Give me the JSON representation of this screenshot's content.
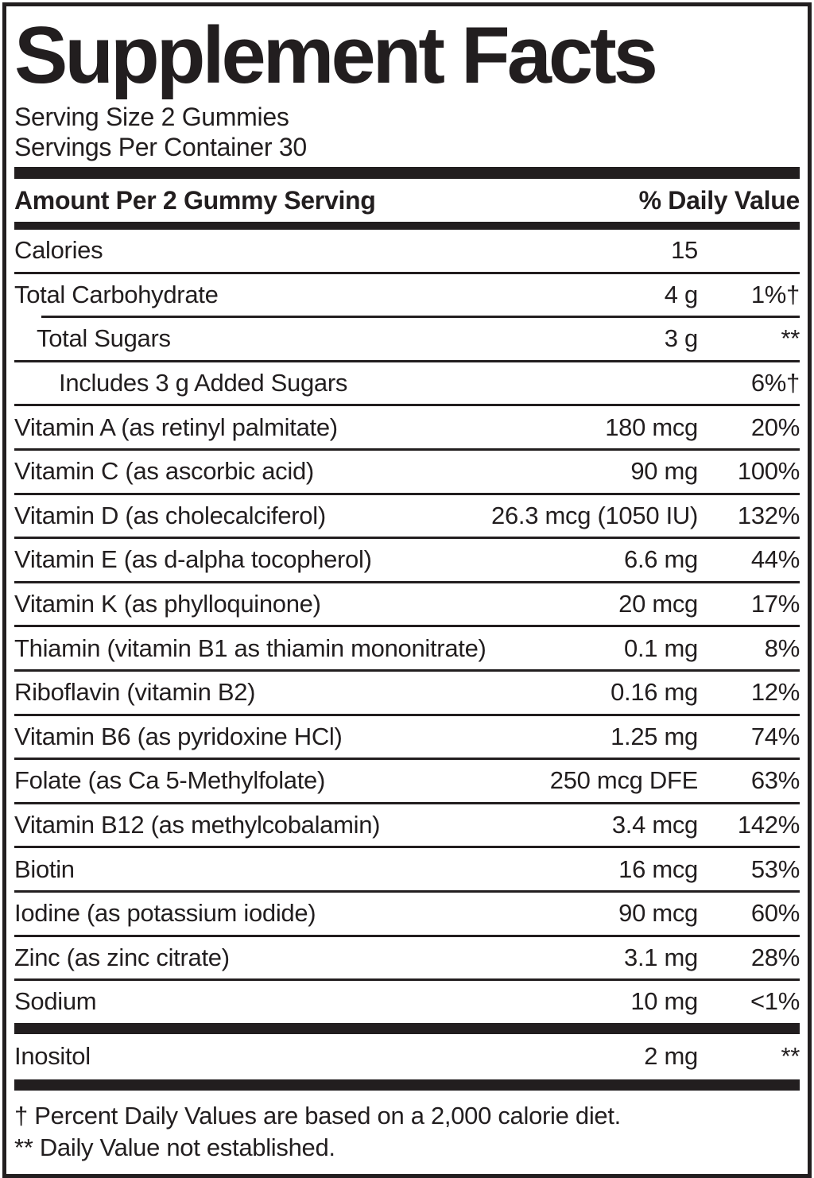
{
  "label": {
    "title": "Supplement Facts",
    "serving_size": "Serving Size 2 Gummies",
    "servings_per_container": "Servings Per Container 30",
    "columns": {
      "amount_header": "Amount Per 2 Gummy Serving",
      "dv_header": "% Daily Value"
    },
    "rows": [
      {
        "name": "Calories",
        "amount": "15",
        "dv": ""
      },
      {
        "name": "Total Carbohydrate",
        "amount": "4 g",
        "dv": "1%†"
      },
      {
        "name": "Total Sugars",
        "amount": "3 g",
        "dv": "**"
      },
      {
        "name": "Includes 3 g Added Sugars",
        "amount": "",
        "dv": "6%†"
      },
      {
        "name": "Vitamin A (as retinyl palmitate)",
        "amount": "180 mcg",
        "dv": "20%"
      },
      {
        "name": "Vitamin C (as ascorbic acid)",
        "amount": "90 mg",
        "dv": "100%"
      },
      {
        "name": "Vitamin D (as cholecalciferol)",
        "amount": "26.3 mcg (1050 IU)",
        "dv": "132%"
      },
      {
        "name": "Vitamin E (as d-alpha tocopherol)",
        "amount": "6.6 mg",
        "dv": "44%"
      },
      {
        "name": "Vitamin K (as phylloquinone)",
        "amount": "20 mcg",
        "dv": "17%"
      },
      {
        "name": "Thiamin (vitamin B1 as thiamin mononitrate)",
        "amount": "0.1 mg",
        "dv": "8%"
      },
      {
        "name": "Riboflavin (vitamin B2)",
        "amount": "0.16 mg",
        "dv": "12%"
      },
      {
        "name": "Vitamin B6 (as pyridoxine HCl)",
        "amount": "1.25 mg",
        "dv": "74%"
      },
      {
        "name": "Folate (as Ca 5-Methylfolate)",
        "amount": "250 mcg DFE",
        "dv": "63%"
      },
      {
        "name": "Vitamin B12 (as methylcobalamin)",
        "amount": "3.4 mcg",
        "dv": "142%"
      },
      {
        "name": "Biotin",
        "amount": "16 mcg",
        "dv": "53%"
      },
      {
        "name": "Iodine (as potassium iodide)",
        "amount": "90 mcg",
        "dv": "60%"
      },
      {
        "name": "Zinc (as zinc citrate)",
        "amount": "3.1 mg",
        "dv": "28%"
      },
      {
        "name": "Sodium",
        "amount": "10 mg",
        "dv": "<1%"
      }
    ],
    "other_rows": [
      {
        "name": "Inositol",
        "amount": "2 mg",
        "dv": "**"
      }
    ],
    "footnotes": [
      "† Percent Daily Values are based on a 2,000 calorie diet.",
      "** Daily Value not established."
    ],
    "colors": {
      "ink": "#221e1f",
      "background": "#ffffff"
    }
  }
}
